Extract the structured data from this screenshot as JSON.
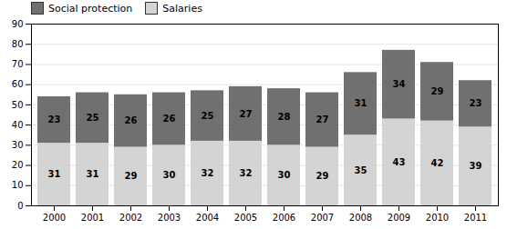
{
  "chart_data": {
    "type": "bar",
    "stacked": true,
    "categories": [
      "2000",
      "2001",
      "2002",
      "2003",
      "2004",
      "2005",
      "2006",
      "2007",
      "2008",
      "2009",
      "2010",
      "2011"
    ],
    "series": [
      {
        "name": "Salaries",
        "color": "#d4d4d4",
        "values": [
          31,
          31,
          29,
          30,
          32,
          32,
          30,
          29,
          35,
          43,
          42,
          39
        ]
      },
      {
        "name": "Social protection",
        "color": "#707070",
        "values": [
          23,
          25,
          26,
          26,
          25,
          27,
          28,
          27,
          31,
          34,
          29,
          23
        ]
      }
    ],
    "ylim": [
      0,
      90
    ],
    "yticks": [
      0,
      10,
      20,
      30,
      40,
      50,
      60,
      70,
      80,
      90
    ],
    "grid": true,
    "data_labels": true,
    "legend": "upper left"
  }
}
